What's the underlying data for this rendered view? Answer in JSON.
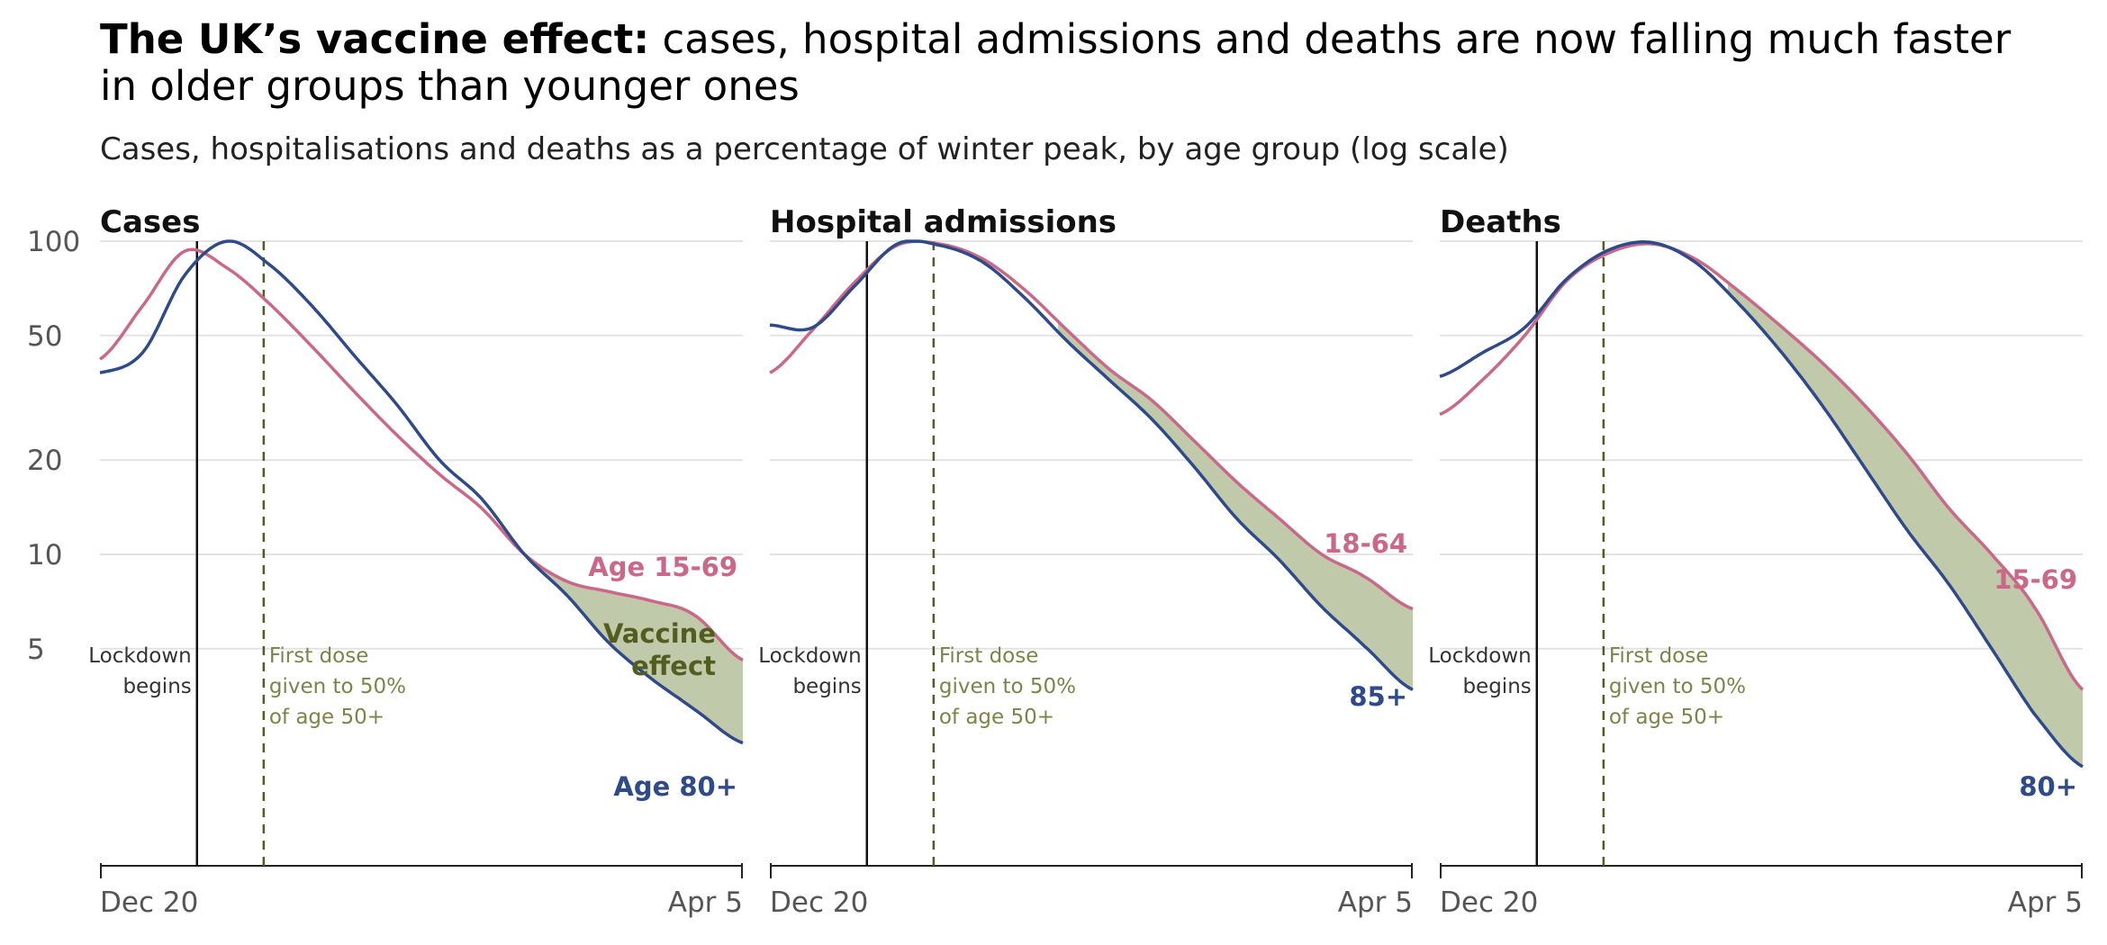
{
  "header": {
    "title_bold": "The UK’s vaccine effect:",
    "title_rest": " cases, hospital admissions and deaths are now falling much faster in older groups than younger ones",
    "subtitle": "Cases, hospitalisations and deaths as a percentage of winter peak, by age group (log scale)"
  },
  "colors": {
    "older": "#2e4a8a",
    "younger": "#cc6787",
    "effect_fill": "#c0c9a9",
    "dose_line": "#525e1f",
    "annot_dose": "#7b8546",
    "grid": "#e3e3e3"
  },
  "chart_data": [
    {
      "type": "line",
      "title": "Cases",
      "x_range": [
        "Dec 20",
        "Apr 5"
      ],
      "x_ticks": [
        "Dec 20",
        "Apr 5"
      ],
      "y_scale": "log",
      "ylim": [
        1,
        100
      ],
      "y_ticks": [
        100,
        50,
        20,
        10,
        5
      ],
      "grid": true,
      "markers": [
        {
          "date": "Jan 5",
          "label_lines": [
            "Lockdown",
            "begins"
          ],
          "style": "solid"
        },
        {
          "date": "Jan 16",
          "label_lines": [
            "First dose",
            "given to 50%",
            "of age 50+"
          ],
          "style": "dashed"
        }
      ],
      "shaded_label": [
        "Vaccine",
        "effect"
      ],
      "series": [
        {
          "name": "Age 15-69",
          "group": "younger",
          "x": [
            "Dec 20",
            "Dec 27",
            "Jan 3",
            "Jan 10",
            "Jan 17",
            "Jan 24",
            "Jan 31",
            "Feb 7",
            "Feb 14",
            "Feb 21",
            "Feb 28",
            "Mar 7",
            "Mar 14",
            "Mar 21",
            "Mar 28",
            "Apr 5"
          ],
          "y": [
            42,
            62,
            93,
            82,
            63,
            46,
            33,
            24,
            18,
            14,
            10,
            8.2,
            7.6,
            7.1,
            6.4,
            4.6
          ]
        },
        {
          "name": "Age 80+",
          "group": "older",
          "x": [
            "Dec 20",
            "Dec 27",
            "Jan 3",
            "Jan 10",
            "Jan 17",
            "Jan 24",
            "Jan 31",
            "Feb 7",
            "Feb 14",
            "Feb 21",
            "Feb 28",
            "Mar 7",
            "Mar 14",
            "Mar 21",
            "Mar 28",
            "Apr 5"
          ],
          "y": [
            38,
            44,
            78,
            100,
            84,
            62,
            43,
            30,
            20,
            15,
            10,
            7.4,
            5.2,
            4.0,
            3.2,
            2.5
          ]
        }
      ]
    },
    {
      "type": "line",
      "title": "Hospital admissions",
      "x_range": [
        "Dec 20",
        "Apr 5"
      ],
      "x_ticks": [
        "Dec 20",
        "Apr 5"
      ],
      "y_scale": "log",
      "ylim": [
        1,
        100
      ],
      "y_ticks": [
        100,
        50,
        20,
        10,
        5
      ],
      "grid": true,
      "markers": [
        {
          "date": "Jan 5",
          "label_lines": [
            "Lockdown",
            "begins"
          ],
          "style": "solid"
        },
        {
          "date": "Jan 16",
          "label_lines": [
            "First dose",
            "given to 50%",
            "of age 50+"
          ],
          "style": "dashed"
        }
      ],
      "series": [
        {
          "name": "18-64",
          "group": "younger",
          "x": [
            "Dec 20",
            "Dec 27",
            "Jan 3",
            "Jan 10",
            "Jan 17",
            "Jan 24",
            "Jan 31",
            "Feb 7",
            "Feb 14",
            "Feb 21",
            "Feb 28",
            "Mar 7",
            "Mar 14",
            "Mar 21",
            "Mar 28",
            "Apr 5"
          ],
          "y": [
            38,
            52,
            74,
            97,
            98,
            88,
            70,
            52,
            39,
            31,
            23,
            17,
            13,
            10,
            8.5,
            6.7
          ]
        },
        {
          "name": "85+",
          "group": "older",
          "x": [
            "Dec 20",
            "Dec 27",
            "Jan 3",
            "Jan 10",
            "Jan 17",
            "Jan 24",
            "Jan 31",
            "Feb 7",
            "Feb 14",
            "Feb 21",
            "Feb 28",
            "Mar 7",
            "Mar 14",
            "Mar 21",
            "Mar 28",
            "Apr 5"
          ],
          "y": [
            54,
            53,
            72,
            98,
            97,
            86,
            66,
            48,
            36,
            27,
            19,
            13,
            9.6,
            6.8,
            5.1,
            3.7
          ]
        }
      ]
    },
    {
      "type": "line",
      "title": "Deaths",
      "x_range": [
        "Dec 20",
        "Apr 5"
      ],
      "x_ticks": [
        "Dec 20",
        "Apr 5"
      ],
      "y_scale": "log",
      "ylim": [
        1,
        100
      ],
      "y_ticks": [
        100,
        50,
        20,
        10,
        5
      ],
      "grid": true,
      "markers": [
        {
          "date": "Jan 5",
          "label_lines": [
            "Lockdown",
            "begins"
          ],
          "style": "solid"
        },
        {
          "date": "Jan 16",
          "label_lines": [
            "First dose",
            "given to 50%",
            "of age 50+"
          ],
          "style": "dashed"
        }
      ],
      "series": [
        {
          "name": "15-69",
          "group": "younger",
          "x": [
            "Dec 20",
            "Dec 27",
            "Jan 3",
            "Jan 10",
            "Jan 17",
            "Jan 24",
            "Jan 31",
            "Feb 7",
            "Feb 14",
            "Feb 21",
            "Feb 28",
            "Mar 7",
            "Mar 14",
            "Mar 21",
            "Mar 28",
            "Apr 5"
          ],
          "y": [
            28,
            36,
            50,
            75,
            92,
            98,
            88,
            70,
            54,
            41,
            30,
            21,
            14,
            10,
            6.8,
            3.7
          ]
        },
        {
          "name": "80+",
          "group": "older",
          "x": [
            "Dec 20",
            "Dec 27",
            "Jan 3",
            "Jan 10",
            "Jan 17",
            "Jan 24",
            "Jan 31",
            "Feb 7",
            "Feb 14",
            "Feb 21",
            "Feb 28",
            "Mar 7",
            "Mar 14",
            "Mar 21",
            "Mar 28",
            "Apr 5"
          ],
          "y": [
            37,
            44,
            53,
            76,
            94,
            99,
            86,
            64,
            45,
            30,
            19,
            12,
            8.0,
            5.0,
            3.1,
            2.1
          ]
        }
      ]
    }
  ]
}
